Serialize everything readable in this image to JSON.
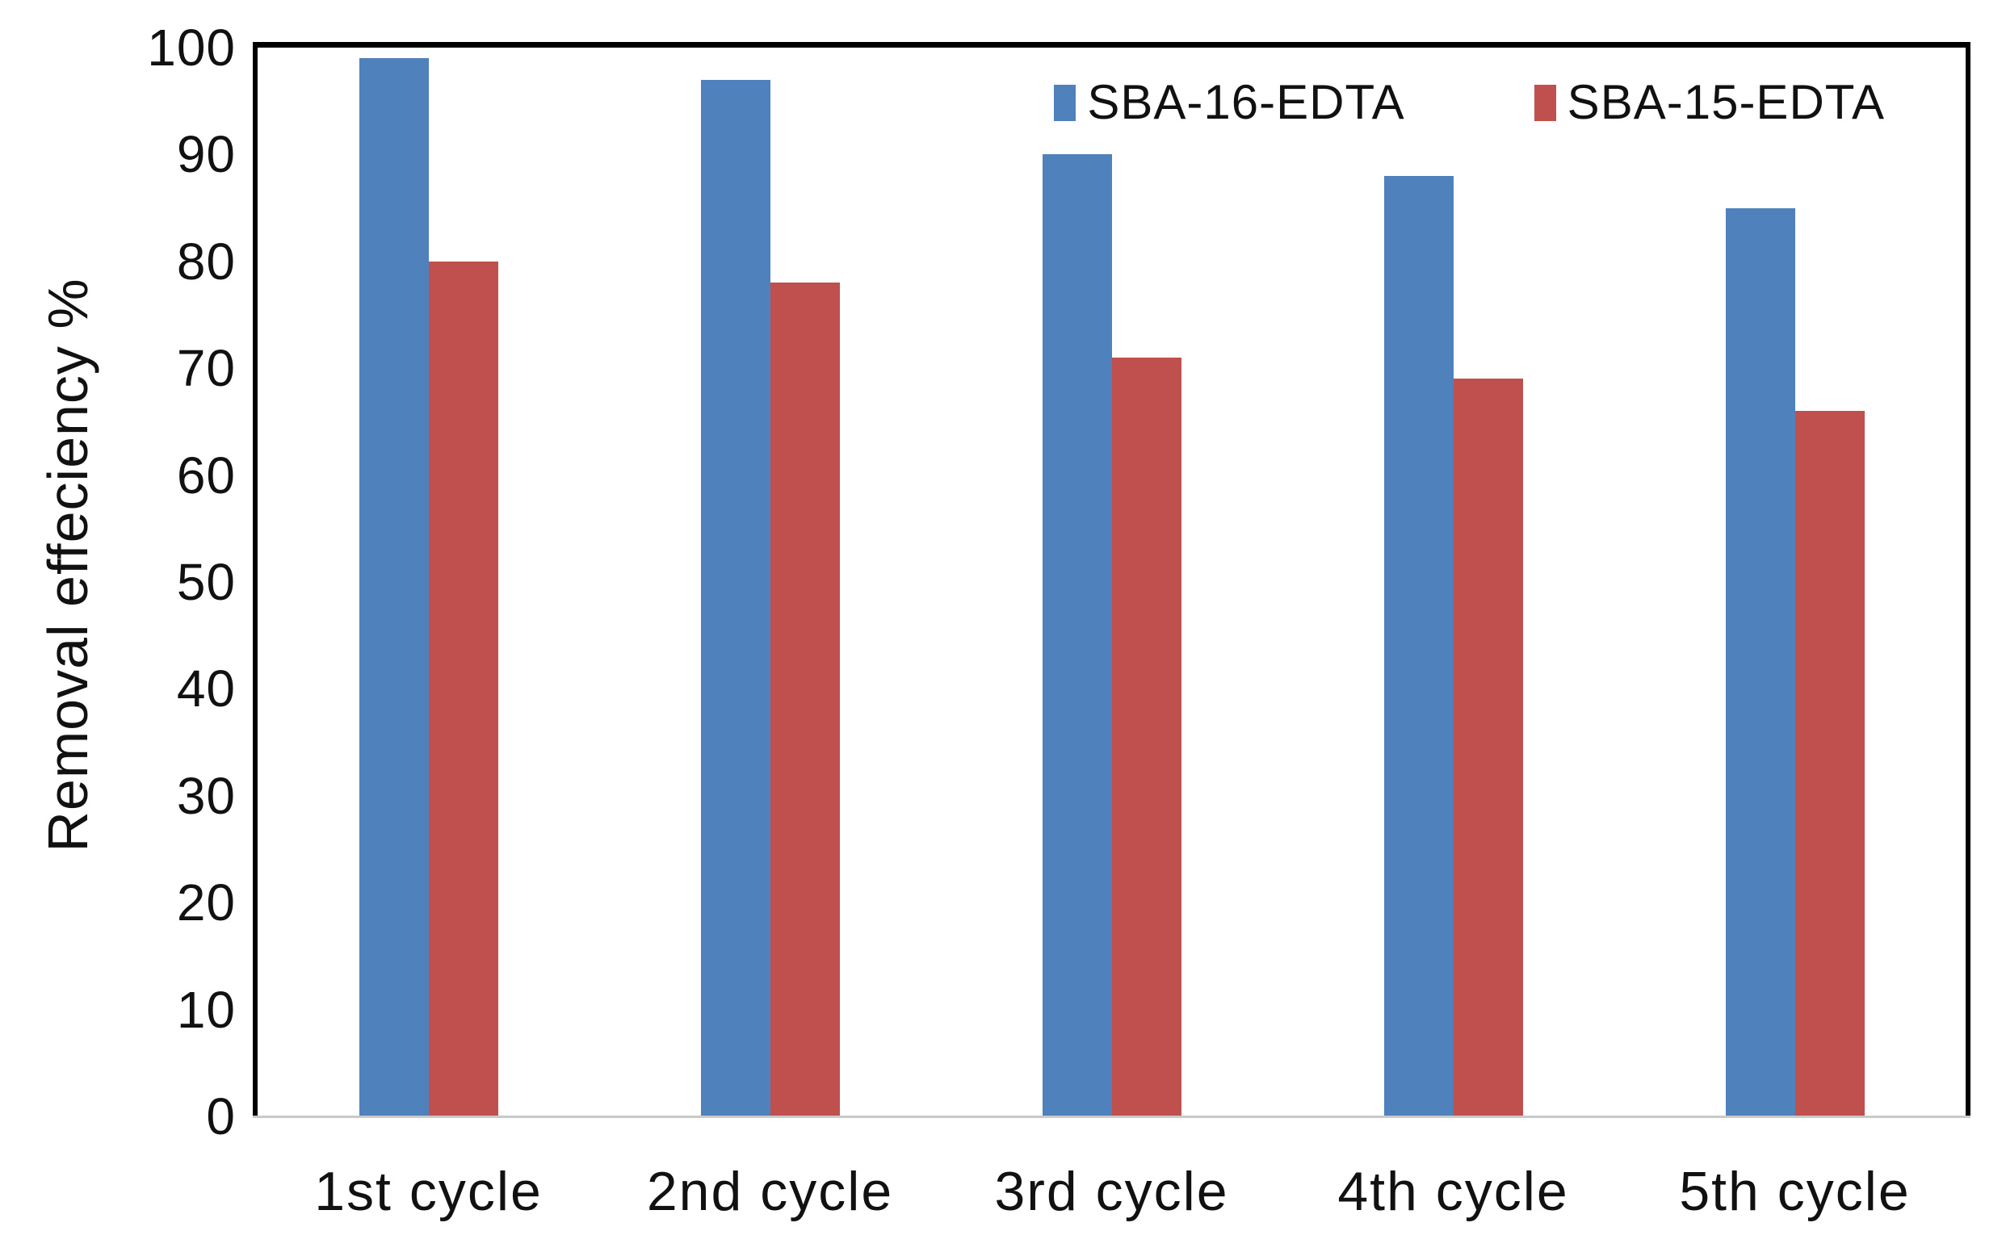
{
  "chart_data": {
    "type": "bar",
    "title": "",
    "categories": [
      "1st cycle",
      "2nd cycle",
      "3rd cycle",
      "4th cycle",
      "5th cycle"
    ],
    "series": [
      {
        "name": "SBA-16-EDTA",
        "color": "#4f81bd",
        "values": [
          99,
          97,
          90,
          88,
          85
        ]
      },
      {
        "name": "SBA-15-EDTA",
        "color": "#c0504d",
        "values": [
          80,
          78,
          71,
          69,
          66
        ]
      }
    ],
    "xlabel": "",
    "ylabel": "Removal effeciency %",
    "ylim": [
      0,
      100
    ],
    "yticks": [
      0,
      10,
      20,
      30,
      40,
      50,
      60,
      70,
      80,
      90,
      100
    ],
    "grid": false,
    "legend_position": "top-right",
    "bar_gap_between_series": 0
  },
  "colors": {
    "frame": "#000000",
    "baseline": "#c9c9c9",
    "text": "#111111",
    "background": "#ffffff"
  }
}
